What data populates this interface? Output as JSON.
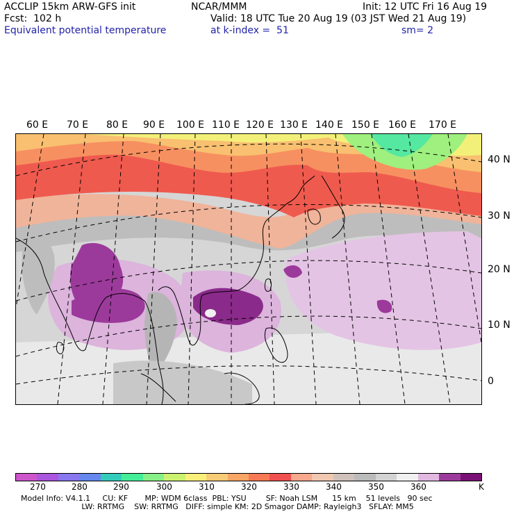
{
  "header": {
    "model": "ACCLIP 15km ARW-GFS init",
    "org": "NCAR/MMM",
    "init": "Init: 12 UTC Fri 16 Aug 19",
    "fcst": "Fcst:  102 h",
    "valid": "Valid: 18 UTC Tue 20 Aug 19 (03 JST Wed 21 Aug 19)",
    "field": "Equivalent potential temperature",
    "level": "at k-index =  51",
    "smooth": "sm= 2"
  },
  "map": {
    "lon_labels": [
      "60 E",
      "70 E",
      "80 E",
      "90 E",
      "100 E",
      "110 E",
      "120 E",
      "130 E",
      "140 E",
      "150 E",
      "160 E",
      "170 E"
    ],
    "lat_labels": [
      "40 N",
      "30 N",
      "20 N",
      "10 N",
      "0"
    ]
  },
  "colorbar": {
    "colors": [
      "#cc55cc",
      "#aa55dd",
      "#8877ee",
      "#6688ee",
      "#33ccbb",
      "#44ee99",
      "#88f088",
      "#ccf070",
      "#f8f07a",
      "#f8cc77",
      "#f8a566",
      "#f87a55",
      "#f05050",
      "#f8a88c",
      "#f0c8b0",
      "#cfc2ba",
      "#bbbbbb",
      "#d3d3d3",
      "#f0f0f0",
      "#e0b8e0",
      "#9c3a9c",
      "#7a1075"
    ],
    "ticks": [
      "270",
      "280",
      "290",
      "300",
      "310",
      "320",
      "330",
      "340",
      "350",
      "360"
    ],
    "unit": "K"
  },
  "footer": {
    "line1": "Model Info: V4.1.1     CU: KF       MP: WDM 6class  PBL: YSU        SF: Noah LSM      15 km    51 levels   90 sec",
    "line2": "                         LW: RRTMG    SW: RRTMG   DIFF: simple KM: 2D Smagor DAMP: Rayleigh3   SFLAY: MM5"
  }
}
